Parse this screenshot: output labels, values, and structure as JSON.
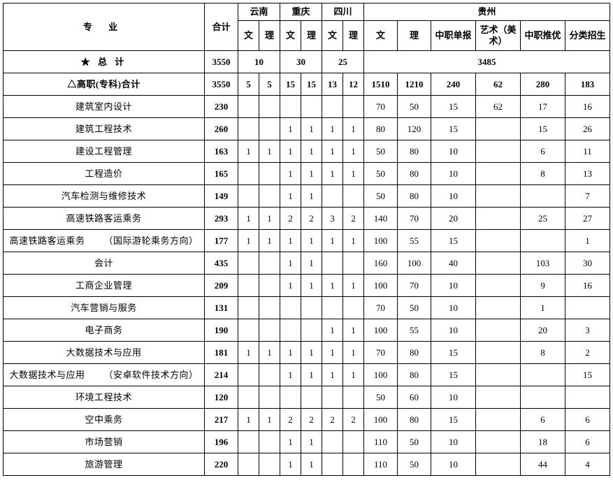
{
  "type": "table",
  "background_color": "#ffffff",
  "border_color": "#000000",
  "font": {
    "family": "SimSun",
    "size": 13,
    "header_weight": "bold"
  },
  "header": {
    "major_label": "专 业",
    "total_label": "合计",
    "provinces": {
      "yunnan": "云南",
      "chongqing": "重庆",
      "sichuan": "四川",
      "guizhou": "贵州"
    },
    "sub": {
      "wen": "文",
      "li": "理",
      "gz_wen": "文",
      "gz_li": "理",
      "gz_zzdb": "中职单报",
      "gz_art": "艺术（美术）",
      "gz_zzty": "中职推优",
      "gz_flzs": "分类招生"
    }
  },
  "totals_row": {
    "label": "★ 总 计",
    "total": "3550",
    "yunnan": "10",
    "chongqing": "30",
    "sichuan": "25",
    "guizhou": "3485"
  },
  "subtotal_row": {
    "label": "△高职(专科)合计",
    "cells": [
      "3550",
      "5",
      "5",
      "15",
      "15",
      "13",
      "12",
      "1510",
      "1210",
      "240",
      "62",
      "280",
      "183"
    ]
  },
  "rows": [
    {
      "label": "建筑室内设计",
      "cells": [
        "230",
        "",
        "",
        "",
        "",
        "",
        "",
        "70",
        "50",
        "15",
        "62",
        "17",
        "16"
      ]
    },
    {
      "label": "建筑工程技术",
      "cells": [
        "260",
        "",
        "",
        "1",
        "1",
        "1",
        "1",
        "80",
        "120",
        "15",
        "",
        "15",
        "26"
      ]
    },
    {
      "label": "建设工程管理",
      "cells": [
        "163",
        "1",
        "1",
        "1",
        "1",
        "1",
        "1",
        "50",
        "80",
        "10",
        "",
        "6",
        "11"
      ]
    },
    {
      "label": "工程造价",
      "cells": [
        "165",
        "",
        "",
        "1",
        "1",
        "1",
        "1",
        "50",
        "80",
        "10",
        "",
        "8",
        "13"
      ]
    },
    {
      "label": "汽车检测与维修技术",
      "cells": [
        "149",
        "",
        "",
        "1",
        "1",
        "",
        "",
        "50",
        "80",
        "10",
        "",
        "",
        "7"
      ]
    },
    {
      "label": "高速铁路客运乘务",
      "cells": [
        "293",
        "1",
        "1",
        "2",
        "2",
        "3",
        "2",
        "140",
        "70",
        "20",
        "",
        "25",
        "27"
      ]
    },
    {
      "label": "高速铁路客运乘务  （国际游轮乘务方向）",
      "cells": [
        "177",
        "1",
        "1",
        "1",
        "1",
        "1",
        "1",
        "100",
        "55",
        "15",
        "",
        "",
        "1"
      ]
    },
    {
      "label": "会计",
      "cells": [
        "435",
        "",
        "",
        "1",
        "1",
        "",
        "",
        "160",
        "100",
        "40",
        "",
        "103",
        "30"
      ]
    },
    {
      "label": "工商企业管理",
      "cells": [
        "209",
        "",
        "",
        "1",
        "1",
        "1",
        "1",
        "100",
        "70",
        "10",
        "",
        "9",
        "16"
      ]
    },
    {
      "label": "汽车营销与服务",
      "cells": [
        "131",
        "",
        "",
        "",
        "",
        "",
        "",
        "70",
        "50",
        "10",
        "",
        "1",
        ""
      ]
    },
    {
      "label": "电子商务",
      "cells": [
        "190",
        "",
        "",
        "",
        "",
        "1",
        "1",
        "100",
        "55",
        "10",
        "",
        "20",
        "3"
      ]
    },
    {
      "label": "大数据技术与应用",
      "cells": [
        "181",
        "1",
        "1",
        "1",
        "1",
        "1",
        "1",
        "70",
        "80",
        "15",
        "",
        "8",
        "2"
      ]
    },
    {
      "label": "大数据技术与应用  （安卓软件技术方向）",
      "cells": [
        "214",
        "",
        "",
        "1",
        "1",
        "1",
        "1",
        "100",
        "80",
        "15",
        "",
        "",
        "15"
      ]
    },
    {
      "label": "环境工程技术",
      "cells": [
        "120",
        "",
        "",
        "",
        "",
        "",
        "",
        "50",
        "60",
        "10",
        "",
        "",
        ""
      ]
    },
    {
      "label": "空中乘务",
      "cells": [
        "217",
        "1",
        "1",
        "2",
        "2",
        "2",
        "2",
        "100",
        "80",
        "15",
        "",
        "6",
        "6"
      ]
    },
    {
      "label": "市场营销",
      "cells": [
        "196",
        "",
        "",
        "1",
        "1",
        "",
        "",
        "110",
        "50",
        "10",
        "",
        "18",
        "6"
      ]
    },
    {
      "label": "旅游管理",
      "cells": [
        "220",
        "",
        "",
        "1",
        "1",
        "",
        "",
        "110",
        "50",
        "10",
        "",
        "44",
        "4"
      ]
    }
  ]
}
